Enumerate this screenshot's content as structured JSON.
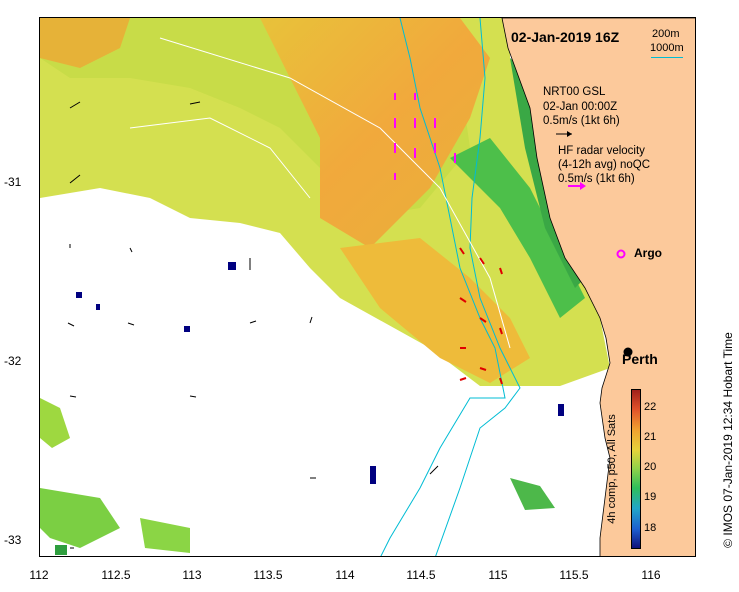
{
  "map": {
    "title": "02-Jan-2019 16Z",
    "depth_contours": [
      "200m",
      "1000m"
    ],
    "depth_contour_color": "#00bcd4",
    "land_color": "#fcc99b",
    "gsl_legend": {
      "lines": [
        "NRT00 GSL",
        "02-Jan 00:00Z",
        "0.5m/s (1kt 6h)"
      ],
      "arrow_color": "#000000"
    },
    "hf_radar_legend": {
      "lines": [
        "HF radar velocity",
        "(4-12h avg) noQC",
        "0.5m/s (1kt 6h)"
      ],
      "arrow_color": "#ff00ff"
    },
    "argo_label": "Argo",
    "argo_marker_color": "#ff00ff",
    "city_label": "Perth",
    "credit": "©  IMOS 07-Jan-2019 12:34 Hobart Time",
    "colorbar": {
      "label": "4h comp, p50, All Sats",
      "ticks": [
        "18",
        "19",
        "20",
        "21",
        "22"
      ],
      "range": [
        17.5,
        22.5
      ]
    },
    "x_axis": {
      "ticks": [
        "112",
        "112.5",
        "113",
        "113.5",
        "114",
        "114.5",
        "115",
        "115.5",
        "116"
      ],
      "range": [
        112,
        116.3
      ]
    },
    "y_axis": {
      "ticks": [
        "-31",
        "-32",
        "-33"
      ],
      "range": [
        -33.08,
        -30.08
      ]
    }
  }
}
